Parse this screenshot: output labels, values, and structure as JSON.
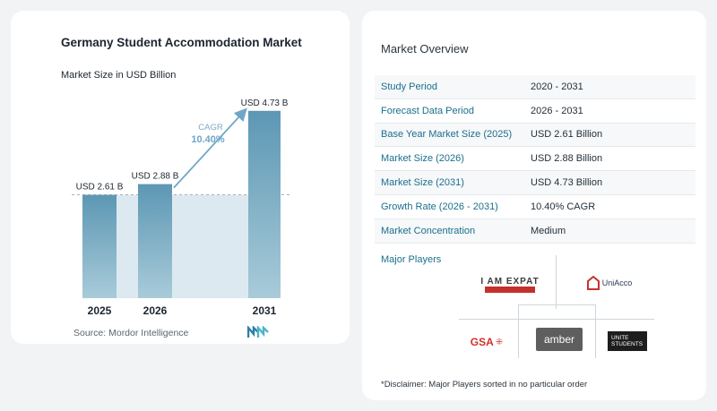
{
  "chart_title": "Germany Student Accommodation Market",
  "chart_subtitle": "Market Size in USD Billion",
  "source": "Source:  Mordor Intelligence",
  "chart_data": {
    "type": "bar",
    "categories": [
      "2025",
      "2026",
      "2031"
    ],
    "values": [
      2.61,
      2.88,
      4.73
    ],
    "data_labels": [
      "USD 2.61 B",
      "USD 2.88 B",
      "USD 4.73 B"
    ],
    "cagr_label": "CAGR",
    "cagr_value": "10.40%",
    "ylim": [
      0,
      5.2
    ],
    "grid": false,
    "colors": {
      "bar_top": "#5d97b4",
      "bar_bottom": "#a8cbd9",
      "band": "#dde9f1",
      "arrow": "#6fa7c7",
      "ref_line": "#a9b3bb"
    }
  },
  "overview": {
    "title": "Market Overview",
    "rows": [
      {
        "label": "Study Period",
        "value": "2020 - 2031"
      },
      {
        "label": "Forecast Data Period",
        "value": "2026 - 2031"
      },
      {
        "label": "Base Year Market Size (2025)",
        "value": "USD 2.61 Billion"
      },
      {
        "label": "Market Size (2026)",
        "value": "USD 2.88 Billion"
      },
      {
        "label": "Market Size (2031)",
        "value": "USD 4.73 Billion"
      },
      {
        "label": "Growth Rate (2026 - 2031)",
        "value": "10.40% CAGR"
      },
      {
        "label": "Market Concentration",
        "value": "Medium"
      }
    ]
  },
  "players": {
    "label": "Major Players",
    "items": [
      "I AM EXPAT",
      "UniAcco",
      "GSA",
      "amber",
      "UNITE STUDENTS"
    ],
    "disclaimer": "*Disclaimer: Major Players sorted in no particular order"
  }
}
